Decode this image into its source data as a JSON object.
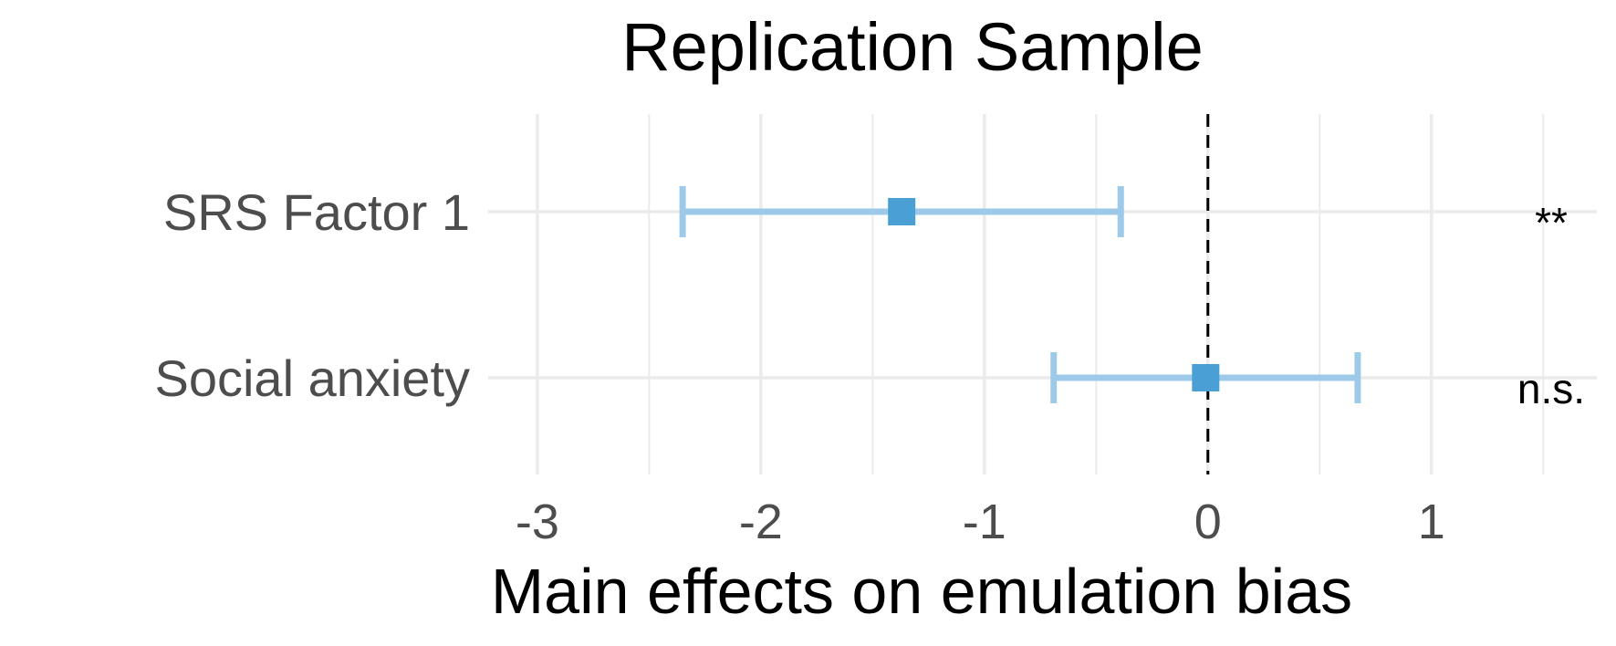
{
  "chart_data": {
    "type": "forest",
    "title": "Replication Sample",
    "xlabel": "Main effects on emulation bias",
    "ylabel": "",
    "xlim": [
      -3.22,
      1.74
    ],
    "x_ticks": [
      -3,
      -2,
      -1,
      0,
      1
    ],
    "x_tick_labels": [
      "-3",
      "-2",
      "-1",
      "0",
      "1"
    ],
    "reference_line": 0,
    "grid": true,
    "colors": {
      "point": "#4aa0d5",
      "ci": "#9ecae9"
    },
    "rows": [
      {
        "label": "SRS Factor 1",
        "estimate": -1.37,
        "ci_low": -2.35,
        "ci_high": -0.39,
        "significance": "**"
      },
      {
        "label": "Social anxiety",
        "estimate": -0.01,
        "ci_low": -0.69,
        "ci_high": 0.67,
        "significance": "n.s."
      }
    ]
  }
}
